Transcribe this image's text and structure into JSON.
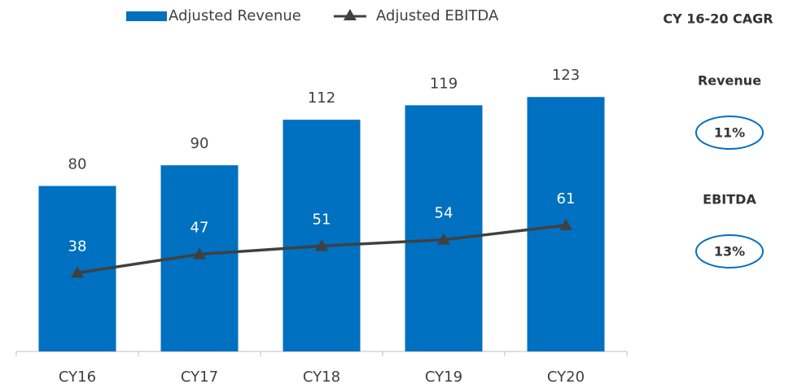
{
  "chart_data": {
    "type": "bar",
    "categories": [
      "CY16",
      "CY17",
      "CY18",
      "CY19",
      "CY20"
    ],
    "series": [
      {
        "name": "Adjusted Revenue",
        "type": "bar",
        "color": "#0070c0",
        "values": [
          80,
          90,
          112,
          119,
          123
        ]
      },
      {
        "name": "Adjusted EBITDA",
        "type": "line",
        "color": "#404040",
        "values": [
          38,
          47,
          51,
          54,
          61
        ]
      }
    ],
    "ylim": [
      0,
      140
    ],
    "legend": "top",
    "side_panel": {
      "title": "CY 16-20 CAGR",
      "items": [
        {
          "label": "Revenue",
          "value": "11%"
        },
        {
          "label": "EBITDA",
          "value": "13%"
        }
      ]
    }
  }
}
